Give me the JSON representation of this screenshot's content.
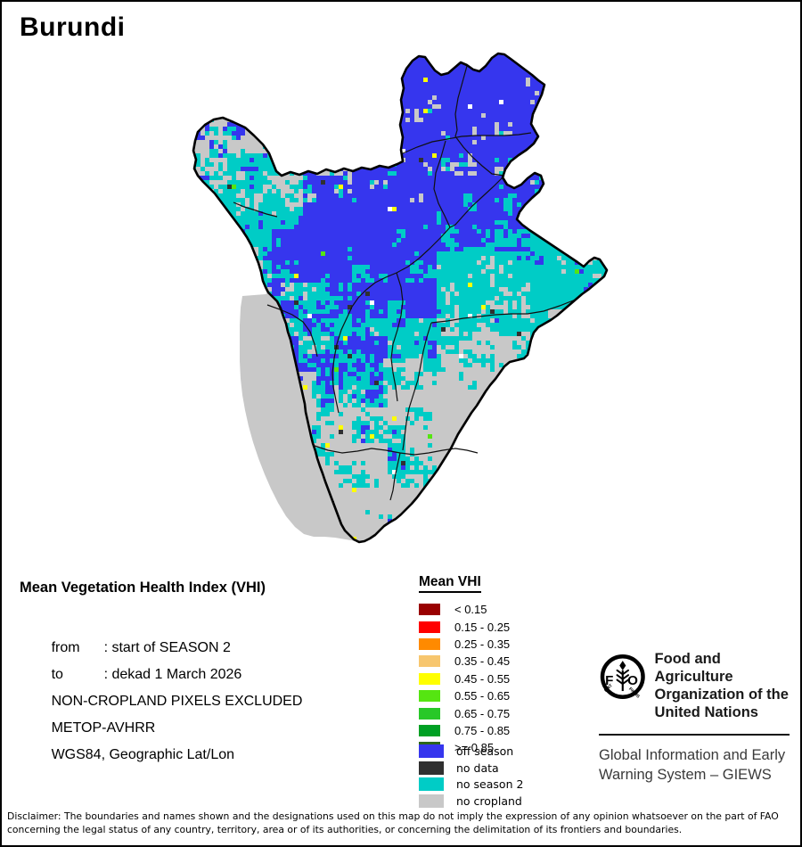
{
  "title": "Burundi",
  "info_block": {
    "heading": "Mean Vegetation Health Index (VHI)",
    "rows": [
      {
        "label": "from",
        "value": ": start of SEASON 2"
      },
      {
        "label": "to",
        "value": ": dekad 1 March 2026"
      },
      {
        "label": "",
        "value": "NON-CROPLAND PIXELS EXCLUDED"
      },
      {
        "label": "",
        "value": "METOP-AVHRR"
      },
      {
        "label": "",
        "value": "WGS84, Geographic Lat/Lon"
      }
    ]
  },
  "vhi_legend": {
    "title": "Mean VHI",
    "classes": [
      {
        "label": "< 0.15",
        "color": "#990000"
      },
      {
        "label": "0.15 - 0.25",
        "color": "#FF0000"
      },
      {
        "label": "0.25 - 0.35",
        "color": "#FF8A00"
      },
      {
        "label": "0.35 - 0.45",
        "color": "#F7C66E"
      },
      {
        "label": "0.45 - 0.55",
        "color": "#FFFF00"
      },
      {
        "label": "0.55 - 0.65",
        "color": "#55E511"
      },
      {
        "label": "0.65 - 0.75",
        "color": "#28C828"
      },
      {
        "label": "0.75 - 0.85",
        "color": "#00A024"
      },
      {
        "label": ">= 0.85",
        "color": "#2D661A"
      }
    ]
  },
  "status_legend": [
    {
      "label": "off season",
      "color": "#3636EE"
    },
    {
      "label": "no data",
      "color": "#303030"
    },
    {
      "label": "no season 2",
      "color": "#00CCC6"
    },
    {
      "label": "no cropland",
      "color": "#C8C8C8"
    }
  ],
  "fao": {
    "logo": {
      "letter_f": "F",
      "letter_o": "O",
      "motto_left": "FIAT",
      "motto_right": "PANIS"
    },
    "org_lines": [
      "Food and Agriculture",
      "Organization of the",
      "United Nations"
    ],
    "giews_lines": [
      "Global Information and Early",
      "Warning System – GIEWS"
    ]
  },
  "map": {
    "country": "Burundi",
    "pixel_colors": {
      "off_season": "#3636EE",
      "no_season_2": "#00CCC6",
      "no_cropland": "#C8C8C8",
      "no_data": "#303030"
    },
    "accent_colors": {
      "sprinkle_yellow": "#FFFF00",
      "sprinkle_green": "#55E511"
    },
    "border_color": "#000000"
  },
  "disclaimer": "Disclaimer: The boundaries and names shown and the designations used on this map do not imply the expression of any opinion whatsoever on the part of FAO concerning the legal status of any country, territory, area or of its authorities, or concerning the delimitation of its frontiers and boundaries."
}
